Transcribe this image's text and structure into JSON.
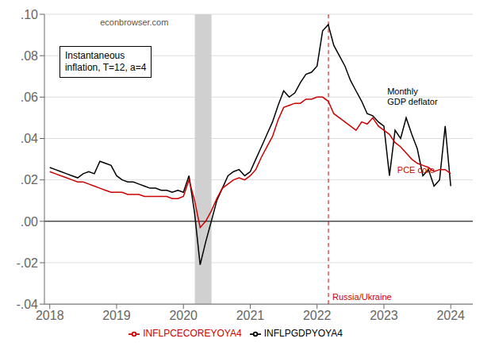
{
  "chart_data": {
    "type": "line",
    "x": [
      2018.0,
      2018.083,
      2018.167,
      2018.25,
      2018.333,
      2018.417,
      2018.5,
      2018.583,
      2018.667,
      2018.75,
      2018.833,
      2018.917,
      2019.0,
      2019.083,
      2019.167,
      2019.25,
      2019.333,
      2019.417,
      2019.5,
      2019.583,
      2019.667,
      2019.75,
      2019.833,
      2019.917,
      2020.0,
      2020.083,
      2020.167,
      2020.25,
      2020.333,
      2020.417,
      2020.5,
      2020.583,
      2020.667,
      2020.75,
      2020.833,
      2020.917,
      2021.0,
      2021.083,
      2021.167,
      2021.25,
      2021.333,
      2021.417,
      2021.5,
      2021.583,
      2021.667,
      2021.75,
      2021.833,
      2021.917,
      2022.0,
      2022.083,
      2022.167,
      2022.25,
      2022.333,
      2022.417,
      2022.5,
      2022.583,
      2022.667,
      2022.75,
      2022.833,
      2022.917,
      2023.0,
      2023.083,
      2023.167,
      2023.25,
      2023.333,
      2023.417,
      2023.5,
      2023.583,
      2023.667,
      2023.75,
      2023.833,
      2023.917,
      2024.0
    ],
    "series": [
      {
        "name": "INFLPGDPYOYA4",
        "color": "#000000",
        "values": [
          0.026,
          0.025,
          0.024,
          0.023,
          0.022,
          0.021,
          0.023,
          0.024,
          0.023,
          0.029,
          0.028,
          0.027,
          0.022,
          0.02,
          0.019,
          0.019,
          0.018,
          0.017,
          0.016,
          0.016,
          0.015,
          0.015,
          0.014,
          0.015,
          0.014,
          0.022,
          0.004,
          -0.021,
          -0.01,
          0.0,
          0.01,
          0.016,
          0.022,
          0.024,
          0.025,
          0.022,
          0.024,
          0.03,
          0.036,
          0.042,
          0.048,
          0.056,
          0.063,
          0.06,
          0.062,
          0.067,
          0.071,
          0.072,
          0.075,
          0.092,
          0.095,
          0.085,
          0.08,
          0.075,
          0.068,
          0.063,
          0.058,
          0.052,
          0.051,
          0.048,
          0.046,
          0.022,
          0.044,
          0.04,
          0.05,
          0.042,
          0.035,
          0.022,
          0.025,
          0.017,
          0.02,
          0.046,
          0.017
        ]
      },
      {
        "name": "INFLPCECOREYOYA4",
        "color": "#cc0000",
        "values": [
          0.024,
          0.023,
          0.022,
          0.021,
          0.02,
          0.019,
          0.019,
          0.018,
          0.017,
          0.016,
          0.015,
          0.014,
          0.014,
          0.014,
          0.013,
          0.013,
          0.013,
          0.012,
          0.012,
          0.012,
          0.012,
          0.012,
          0.011,
          0.011,
          0.012,
          0.02,
          0.01,
          -0.003,
          0.0,
          0.005,
          0.011,
          0.016,
          0.018,
          0.02,
          0.021,
          0.02,
          0.022,
          0.025,
          0.031,
          0.036,
          0.041,
          0.049,
          0.055,
          0.056,
          0.057,
          0.057,
          0.059,
          0.059,
          0.06,
          0.06,
          0.058,
          0.052,
          0.05,
          0.048,
          0.046,
          0.044,
          0.048,
          0.047,
          0.05,
          0.046,
          0.044,
          0.042,
          0.038,
          0.036,
          0.033,
          0.03,
          0.028,
          0.027,
          0.026,
          0.024,
          0.025,
          0.025,
          0.023
        ]
      }
    ],
    "xlim": [
      2017.92,
      2024.33
    ],
    "xticks": [
      2018,
      2019,
      2020,
      2021,
      2022,
      2023,
      2024
    ],
    "ylim": [
      -0.04,
      0.1
    ],
    "yticks": [
      {
        "value": -0.04,
        "label": "-.04"
      },
      {
        "value": -0.02,
        "label": "-.02"
      },
      {
        "value": 0.0,
        "label": ".00"
      },
      {
        "value": 0.02,
        "label": ".02"
      },
      {
        "value": 0.04,
        "label": ".04"
      },
      {
        "value": 0.06,
        "label": ".06"
      },
      {
        "value": 0.08,
        "label": ".08"
      },
      {
        "value": 0.1,
        "label": ".10"
      }
    ],
    "grid": "y",
    "legend": "bottom",
    "shaded_regions": [
      {
        "start": 2020.17,
        "end": 2020.42,
        "color": "#d0d0d0"
      }
    ],
    "reference_lines": [
      {
        "x": 2022.17,
        "label": "Russia/Ukraine",
        "color": "#cc0000",
        "line_style": "dashed"
      },
      {
        "y": 0,
        "color": "#000000"
      }
    ],
    "annotations": [
      {
        "text": "econbrowser.com",
        "color": "#555555"
      },
      {
        "text": "Instantaneous\ninflation, T=12, a=4",
        "color": "#000000"
      },
      {
        "text": "Monthly\nGDP deflator",
        "x": 2023.05,
        "y": 0.065,
        "color": "#000000"
      },
      {
        "text": "PCE core",
        "x": 2023.2,
        "y": 0.027,
        "color": "#cc0000"
      }
    ]
  }
}
